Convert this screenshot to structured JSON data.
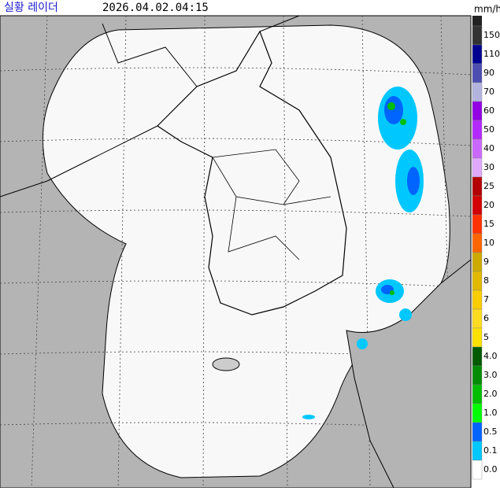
{
  "header": {
    "title": "실황 레이더",
    "time": "2026.04.02.04:15",
    "unit": "mm/h"
  },
  "legend": {
    "items": [
      {
        "label": "150",
        "color": "#333333"
      },
      {
        "label": "110",
        "color": "#000390"
      },
      {
        "label": "90",
        "color": "#4c4eb1"
      },
      {
        "label": "70",
        "color": "#b3b4de"
      },
      {
        "label": "60",
        "color": "#9300e4"
      },
      {
        "label": "50",
        "color": "#b329ff"
      },
      {
        "label": "40",
        "color": "#c969ff"
      },
      {
        "label": "30",
        "color": "#e0a9ff"
      },
      {
        "label": "25",
        "color": "#b40000"
      },
      {
        "label": "20",
        "color": "#d20000"
      },
      {
        "label": "15",
        "color": "#ff3200"
      },
      {
        "label": "10",
        "color": "#ff6600"
      },
      {
        "label": "9",
        "color": "#ccaa00"
      },
      {
        "label": "8",
        "color": "#e0b900"
      },
      {
        "label": "7",
        "color": "#f9cd00"
      },
      {
        "label": "6",
        "color": "#ffdc1f"
      },
      {
        "label": "5",
        "color": "#ffe100"
      },
      {
        "label": "4.0",
        "color": "#005a00"
      },
      {
        "label": "3.0",
        "color": "#008c00"
      },
      {
        "label": "2.0",
        "color": "#00be00"
      },
      {
        "label": "1.0",
        "color": "#00ff00"
      },
      {
        "label": "0.5",
        "color": "#0064ff"
      },
      {
        "label": "0.1",
        "color": "#00c8ff"
      },
      {
        "label": "0.0",
        "color": "#ffffff"
      }
    ]
  }
}
